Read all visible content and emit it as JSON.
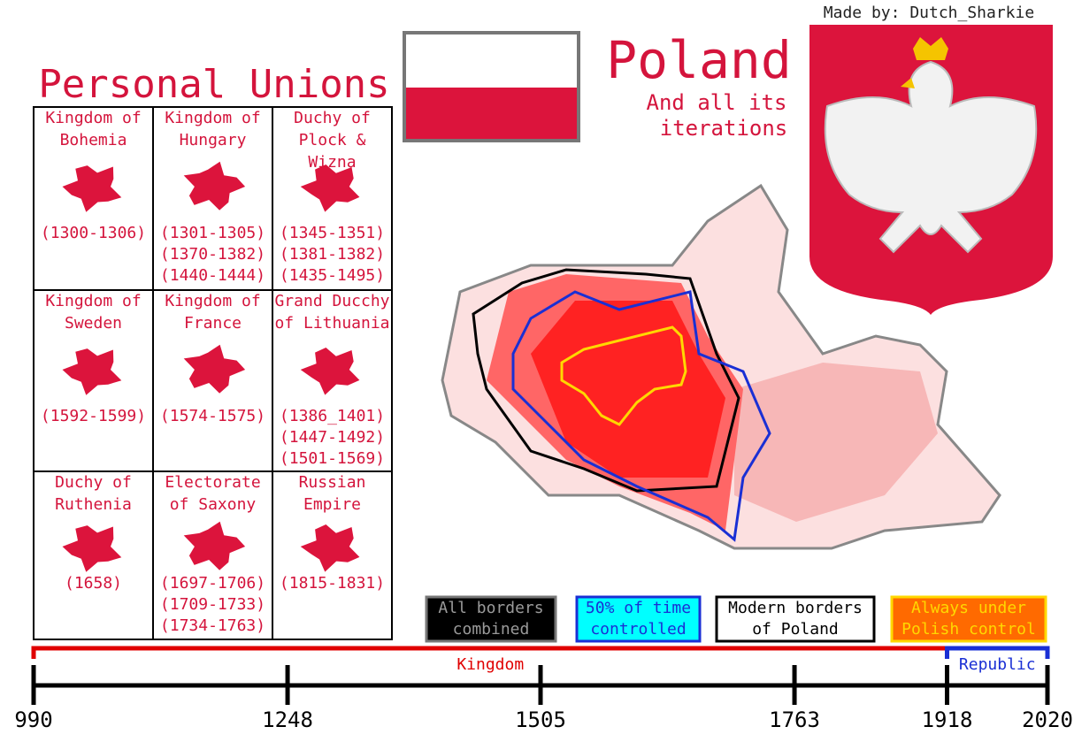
{
  "header": {
    "credit": "Made by: Dutch_Sharkie",
    "title": "Poland",
    "subtitle": [
      "And all its",
      "iterations"
    ]
  },
  "unions": {
    "title": "Personal Unions",
    "cells": [
      {
        "name": [
          "Kingdom of",
          "Bohemia"
        ],
        "periods": [
          "(1300-1306)"
        ]
      },
      {
        "name": [
          "Kingdom of",
          "Hungary"
        ],
        "periods": [
          "(1301-1305)",
          "(1370-1382)",
          "(1440-1444)"
        ]
      },
      {
        "name": [
          "Duchy of",
          "Plock &",
          "Wizna"
        ],
        "periods": [
          "(1345-1351)",
          "(1381-1382)",
          "(1435-1495)"
        ]
      },
      {
        "name": [
          "Kingdom of",
          "Sweden"
        ],
        "periods": [
          "(1592-1599)"
        ]
      },
      {
        "name": [
          "Kingdom of",
          "France"
        ],
        "periods": [
          "(1574-1575)"
        ]
      },
      {
        "name": [
          "Grand Ducchy",
          "of Lithuania"
        ],
        "periods": [
          "(1386_1401)",
          "(1447-1492)",
          "(1501-1569)"
        ]
      },
      {
        "name": [
          "Duchy of",
          "Ruthenia"
        ],
        "periods": [
          "(1658)"
        ]
      },
      {
        "name": [
          "Electorate",
          "of Saxony"
        ],
        "periods": [
          "(1697-1706)",
          "(1709-1733)",
          "(1734-1763)"
        ]
      },
      {
        "name": [
          "Russian",
          "Empire"
        ],
        "periods": [
          "(1815-1831)"
        ]
      }
    ]
  },
  "legend": [
    {
      "label": [
        "All borders",
        "combined"
      ],
      "fill": "#000000",
      "border": "#777777",
      "text": "#9a9a9a"
    },
    {
      "label": [
        "50% of time",
        "controlled"
      ],
      "fill": "#00ffff",
      "border": "#1a2fd4",
      "text": "#1a2fd4"
    },
    {
      "label": [
        "Modern borders",
        "of Poland"
      ],
      "fill": "#ffffff",
      "border": "#000000",
      "text": "#000000"
    },
    {
      "label": [
        "Always under",
        "Polish control"
      ],
      "fill": "#ff6a00",
      "border": "#ffd800",
      "text": "#ffd800"
    }
  ],
  "timeline": {
    "ticks": [
      990,
      1248,
      1505,
      1763,
      1918,
      2020
    ],
    "eras": [
      {
        "label": "Kingdom",
        "color": "#e00000",
        "start": 990,
        "end": 1918
      },
      {
        "label": "Republic",
        "color": "#1a2fd4",
        "start": 1918,
        "end": 2020
      }
    ]
  }
}
